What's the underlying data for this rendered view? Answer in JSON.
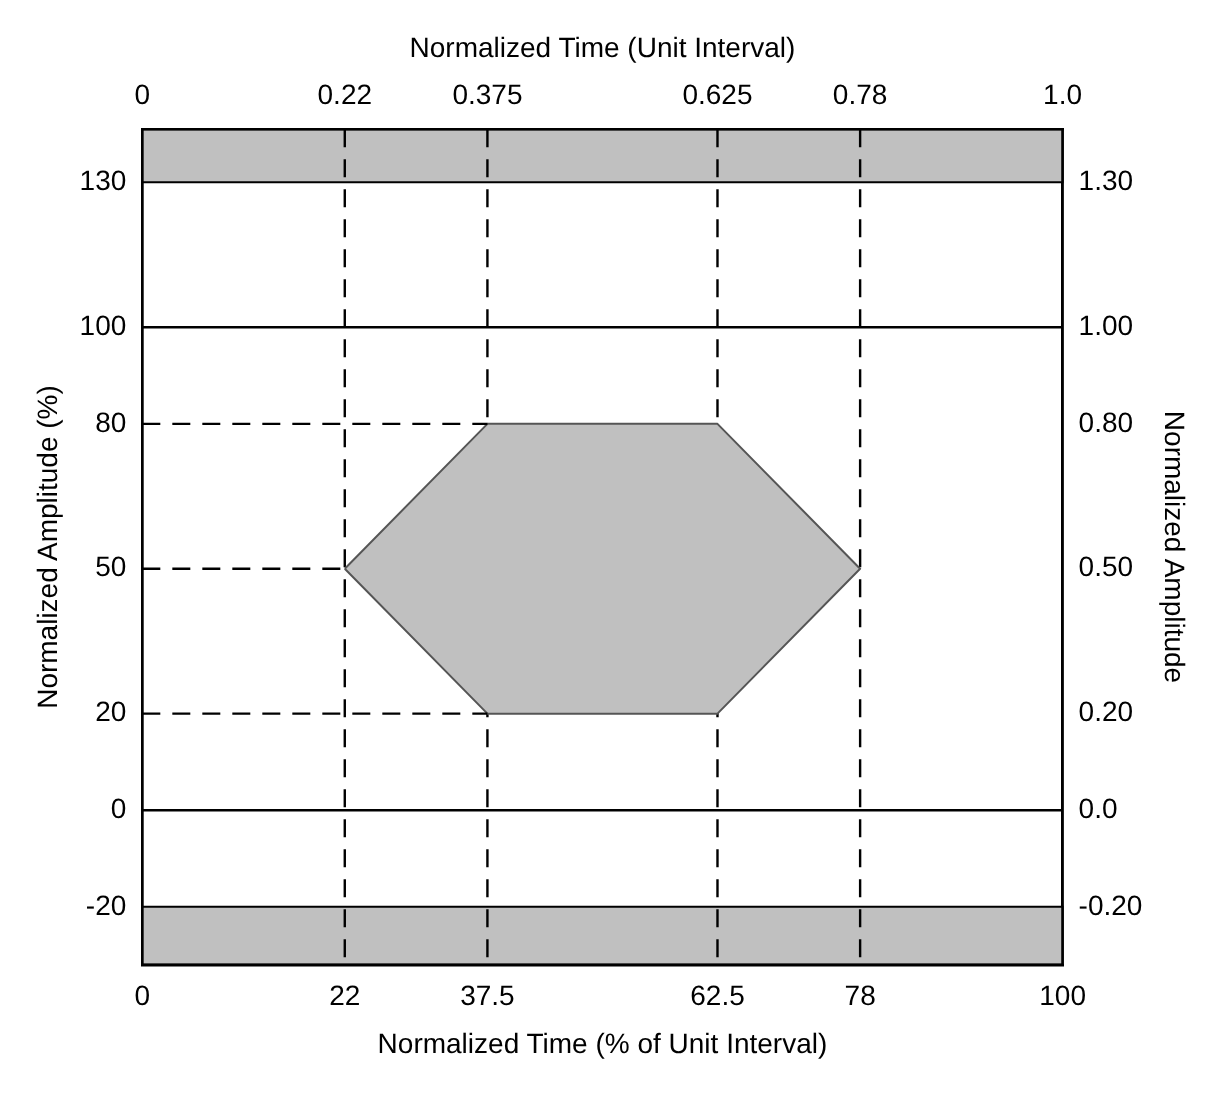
{
  "chart_data": {
    "type": "line",
    "xlabel": "Normalized Time (% of Unit Interval)",
    "x2label": "Normalized Time (Unit Interval)",
    "ylabel": "Normalized Amplitude (%)",
    "y2label": "Normalized Amplitude",
    "xlim": [
      0,
      100
    ],
    "xticks": [
      0,
      22,
      37.5,
      62.5,
      78,
      100
    ],
    "x2lim": [
      0,
      1
    ],
    "x2ticks": [
      0,
      0.22,
      0.375,
      0.625,
      0.78,
      {
        "value": 1,
        "label": "1.0"
      }
    ],
    "ylim": [
      -32,
      141
    ],
    "yticks": [
      -20,
      0,
      20,
      50,
      80,
      100,
      130
    ],
    "y2lim": [
      -0.32,
      1.41
    ],
    "y2ticks": [
      {
        "value": -0.2,
        "label": "-0.20"
      },
      {
        "value": 0,
        "label": "0.0"
      },
      {
        "value": 0.2,
        "label": "0.20"
      },
      {
        "value": 0.5,
        "label": "0.50"
      },
      {
        "value": 0.8,
        "label": "0.80"
      },
      {
        "value": 1,
        "label": "1.00"
      },
      {
        "value": 1.3,
        "label": "1.30"
      }
    ],
    "grid": false,
    "legend": false,
    "marker": "none",
    "series": [
      {
        "type": "area",
        "color": "#c0c0c0",
        "x": [
          22,
          37.5,
          62.5,
          78,
          62.5,
          37.5,
          22
        ],
        "values": [
          50,
          80,
          80,
          50,
          20,
          20,
          50
        ]
      },
      {
        "type": "line",
        "color": "#000000",
        "line_style": "dashed",
        "x": [
          0,
          37.5
        ],
        "values": [
          80,
          80
        ]
      },
      {
        "type": "line",
        "color": "#000000",
        "line_style": "dashed",
        "x": [
          0,
          22
        ],
        "values": [
          50,
          50
        ]
      },
      {
        "type": "line",
        "color": "#000000",
        "line_style": "dashed",
        "x": [
          0,
          37.5
        ],
        "values": [
          20,
          20
        ]
      }
    ],
    "bands": [
      {
        "axis": "y",
        "from": 130,
        "to": 141,
        "color": "#c0c0c0"
      },
      {
        "axis": "y",
        "from": -32,
        "to": -20,
        "color": "#c0c0c0"
      }
    ],
    "ref_lines": [
      {
        "axis": "y",
        "value": 100,
        "color": "#000000",
        "line_style": "solid"
      },
      {
        "axis": "y",
        "value": 0,
        "color": "#000000",
        "line_style": "solid"
      },
      {
        "axis": "x",
        "value": 22,
        "color": "#000000",
        "line_style": "dashed"
      },
      {
        "axis": "x",
        "value": 37.5,
        "color": "#000000",
        "line_style": "dashed"
      },
      {
        "axis": "x",
        "value": 62.5,
        "color": "#000000",
        "line_style": "dashed"
      },
      {
        "axis": "x",
        "value": 78,
        "color": "#000000",
        "line_style": "dashed"
      }
    ]
  }
}
